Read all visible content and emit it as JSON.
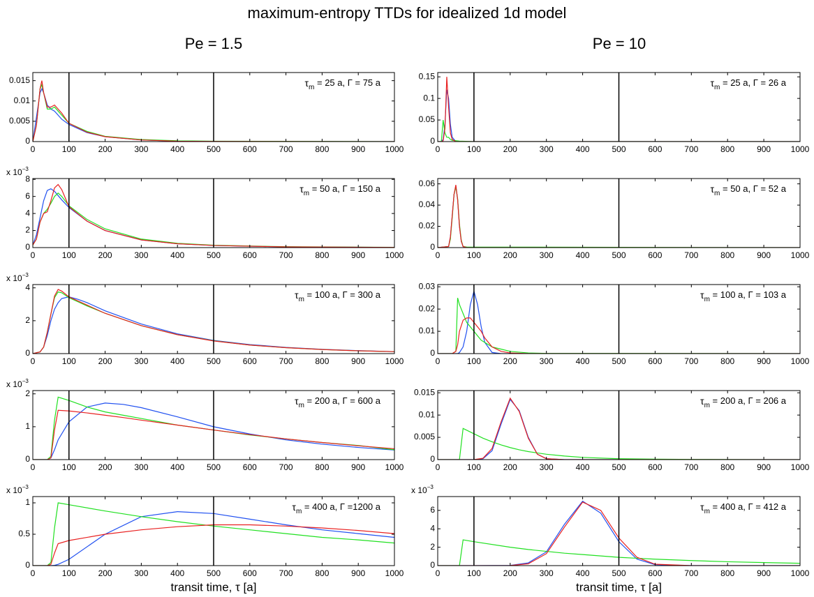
{
  "title": "maximum-entropy TTDs for idealized 1d model",
  "columns": [
    "Pe = 1.5",
    "Pe = 10"
  ],
  "chart_data": [
    {
      "type": "line",
      "annotation": [
        "τ",
        "m",
        " = 25 a, Γ =  75 a"
      ],
      "xlim": [
        0,
        1000
      ],
      "xticks": [
        0,
        100,
        200,
        300,
        400,
        500,
        600,
        700,
        800,
        900,
        1000
      ],
      "ylim": [
        0,
        0.017
      ],
      "yticks": [
        0,
        0.005,
        0.01,
        0.015
      ],
      "vlines": [
        100,
        500
      ],
      "x": [
        0,
        10,
        20,
        25,
        30,
        40,
        50,
        60,
        70,
        80,
        100,
        150,
        200,
        300,
        400,
        500,
        1000
      ],
      "series": [
        {
          "color": "#2050f0",
          "values": [
            0,
            0.006,
            0.012,
            0.013,
            0.012,
            0.009,
            0.008,
            0.0075,
            0.0065,
            0.0055,
            0.0042,
            0.0022,
            0.0012,
            0.0004,
            0.0001,
            5e-05,
            0
          ]
        },
        {
          "color": "#20e020",
          "values": [
            0,
            0.004,
            0.013,
            0.014,
            0.012,
            0.008,
            0.008,
            0.0085,
            0.0075,
            0.0065,
            0.0045,
            0.0025,
            0.0013,
            0.0005,
            0.0002,
            0.0001,
            0
          ]
        },
        {
          "color": "#e82020",
          "values": [
            0,
            0.004,
            0.013,
            0.015,
            0.012,
            0.0085,
            0.0085,
            0.009,
            0.008,
            0.007,
            0.0045,
            0.0023,
            0.0012,
            0.0004,
            0.0001,
            5e-05,
            0
          ]
        }
      ]
    },
    {
      "type": "line",
      "annotation": [
        "τ",
        "m",
        " = 50 a, Γ = 150 a"
      ],
      "scale_label": [
        "x 10",
        "−3"
      ],
      "xlim": [
        0,
        1000
      ],
      "xticks": [
        0,
        100,
        200,
        300,
        400,
        500,
        600,
        700,
        800,
        900,
        1000
      ],
      "ylim": [
        0,
        8.1
      ],
      "yticks": [
        0,
        2,
        4,
        6,
        8
      ],
      "vlines": [
        100,
        500
      ],
      "x": [
        0,
        10,
        20,
        30,
        40,
        50,
        60,
        70,
        80,
        100,
        150,
        200,
        300,
        400,
        500,
        700,
        1000
      ],
      "series": [
        {
          "color": "#2050f0",
          "values": [
            0.3,
            1.5,
            3.5,
            5.5,
            6.7,
            6.9,
            6.6,
            6.1,
            5.6,
            4.7,
            3.1,
            2.0,
            0.9,
            0.45,
            0.25,
            0.08,
            0.02
          ]
        },
        {
          "color": "#20e020",
          "values": [
            0.3,
            1,
            3,
            4,
            4.5,
            5.2,
            6,
            6.4,
            6,
            4.9,
            3.3,
            2.2,
            1.0,
            0.5,
            0.28,
            0.1,
            0.03
          ]
        },
        {
          "color": "#e82020",
          "values": [
            0.3,
            1,
            3,
            4,
            4.2,
            5.5,
            7,
            7.4,
            6.8,
            4.8,
            3.1,
            2.0,
            0.9,
            0.45,
            0.25,
            0.08,
            0.02
          ]
        }
      ]
    },
    {
      "type": "line",
      "annotation": [
        "τ",
        "m",
        " = 100 a, Γ = 300 a"
      ],
      "scale_label": [
        "x 10",
        "−3"
      ],
      "xlim": [
        0,
        1000
      ],
      "xticks": [
        0,
        100,
        200,
        300,
        400,
        500,
        600,
        700,
        800,
        900,
        1000
      ],
      "ylim": [
        0,
        4.2
      ],
      "yticks": [
        0,
        2,
        4
      ],
      "vlines": [
        100,
        500
      ],
      "x": [
        0,
        20,
        30,
        40,
        50,
        60,
        70,
        80,
        100,
        125,
        150,
        200,
        300,
        400,
        500,
        600,
        700,
        800,
        900,
        1000
      ],
      "series": [
        {
          "color": "#2050f0",
          "values": [
            0,
            0.1,
            0.4,
            1.1,
            2.0,
            2.7,
            3.1,
            3.35,
            3.45,
            3.3,
            3.1,
            2.6,
            1.8,
            1.2,
            0.8,
            0.55,
            0.38,
            0.26,
            0.18,
            0.12
          ]
        },
        {
          "color": "#20e020",
          "values": [
            0,
            0.1,
            0.4,
            1.3,
            2.4,
            3.4,
            3.75,
            3.7,
            3.4,
            3.15,
            2.9,
            2.45,
            1.7,
            1.15,
            0.78,
            0.52,
            0.36,
            0.25,
            0.17,
            0.12
          ]
        },
        {
          "color": "#e82020",
          "values": [
            0,
            0.1,
            0.4,
            1.3,
            2.4,
            3.5,
            3.9,
            3.8,
            3.45,
            3.2,
            2.95,
            2.45,
            1.7,
            1.15,
            0.77,
            0.52,
            0.36,
            0.25,
            0.17,
            0.12
          ]
        }
      ]
    },
    {
      "type": "line",
      "annotation": [
        "τ",
        "m",
        " = 200 a, Γ = 600 a"
      ],
      "scale_label": [
        "x 10",
        "−3"
      ],
      "xlim": [
        0,
        1000
      ],
      "xticks": [
        0,
        100,
        200,
        300,
        400,
        500,
        600,
        700,
        800,
        900,
        1000
      ],
      "ylim": [
        0,
        2.1
      ],
      "yticks": [
        0,
        1,
        2
      ],
      "vlines": [
        100,
        500
      ],
      "x": [
        0,
        40,
        50,
        60,
        70,
        100,
        150,
        200,
        250,
        300,
        400,
        500,
        600,
        700,
        800,
        900,
        1000
      ],
      "series": [
        {
          "color": "#2050f0",
          "values": [
            0,
            0,
            0.05,
            0.3,
            0.6,
            1.15,
            1.6,
            1.72,
            1.68,
            1.58,
            1.3,
            1.0,
            0.78,
            0.6,
            0.47,
            0.37,
            0.29
          ]
        },
        {
          "color": "#20e020",
          "values": [
            0,
            0,
            0.1,
            1.2,
            1.9,
            1.8,
            1.6,
            1.45,
            1.35,
            1.25,
            1.05,
            0.9,
            0.75,
            0.63,
            0.52,
            0.43,
            0.3
          ]
        },
        {
          "color": "#e82020",
          "values": [
            0,
            0,
            0.05,
            0.9,
            1.5,
            1.48,
            1.42,
            1.35,
            1.28,
            1.2,
            1.05,
            0.9,
            0.76,
            0.63,
            0.52,
            0.42,
            0.33
          ]
        }
      ]
    },
    {
      "type": "line",
      "annotation": [
        "τ",
        "m",
        " = 400 a, Γ =1200 a"
      ],
      "scale_label": [
        "x 10",
        "−3"
      ],
      "xlabel": "transit time, τ [a]",
      "xlim": [
        0,
        1000
      ],
      "xticks": [
        0,
        100,
        200,
        300,
        400,
        500,
        600,
        700,
        800,
        900,
        1000
      ],
      "ylim": [
        0,
        1.1
      ],
      "yticks": [
        0,
        0.5,
        1
      ],
      "vlines": [
        100,
        500
      ],
      "x": [
        0,
        40,
        50,
        60,
        70,
        100,
        200,
        300,
        400,
        500,
        600,
        700,
        800,
        900,
        1000
      ],
      "series": [
        {
          "color": "#2050f0",
          "values": [
            0,
            0,
            0,
            0.005,
            0.02,
            0.1,
            0.5,
            0.78,
            0.86,
            0.83,
            0.74,
            0.65,
            0.57,
            0.51,
            0.45
          ]
        },
        {
          "color": "#20e020",
          "values": [
            0,
            0,
            0.05,
            0.6,
            1.0,
            0.97,
            0.87,
            0.78,
            0.7,
            0.63,
            0.57,
            0.51,
            0.45,
            0.41,
            0.36
          ]
        },
        {
          "color": "#e82020",
          "values": [
            0,
            0,
            0.02,
            0.2,
            0.35,
            0.4,
            0.5,
            0.57,
            0.62,
            0.65,
            0.65,
            0.63,
            0.6,
            0.56,
            0.51
          ]
        }
      ]
    },
    {
      "type": "line",
      "annotation": [
        "τ",
        "m",
        " = 25 a, Γ =  26 a"
      ],
      "xlim": [
        0,
        1000
      ],
      "xticks": [
        0,
        100,
        200,
        300,
        400,
        500,
        600,
        700,
        800,
        900,
        1000
      ],
      "ylim": [
        0,
        0.16
      ],
      "yticks": [
        0,
        0.05,
        0.1,
        0.15
      ],
      "vlines": [
        100,
        500
      ],
      "x": [
        0,
        10,
        15,
        20,
        25,
        30,
        35,
        40,
        50,
        60,
        100,
        1000
      ],
      "series": [
        {
          "color": "#2050f0",
          "values": [
            0,
            0,
            0.005,
            0.04,
            0.12,
            0.1,
            0.04,
            0.01,
            0,
            0,
            0,
            0
          ]
        },
        {
          "color": "#20e020",
          "values": [
            0,
            0,
            0.05,
            0.02,
            0.01,
            0.01,
            0.005,
            0.003,
            0.002,
            0.001,
            0,
            0
          ]
        },
        {
          "color": "#e82020",
          "values": [
            0,
            0,
            0.002,
            0.03,
            0.15,
            0.08,
            0.02,
            0.005,
            0,
            0,
            0,
            0
          ]
        }
      ]
    },
    {
      "type": "line",
      "annotation": [
        "τ",
        "m",
        " = 50 a, Γ =  52 a"
      ],
      "xlim": [
        0,
        1000
      ],
      "xticks": [
        0,
        100,
        200,
        300,
        400,
        500,
        600,
        700,
        800,
        900,
        1000
      ],
      "ylim": [
        0,
        0.065
      ],
      "yticks": [
        0,
        0.02,
        0.04,
        0.06
      ],
      "vlines": [
        100,
        500
      ],
      "x": [
        0,
        30,
        35,
        40,
        45,
        50,
        55,
        60,
        65,
        70,
        80,
        1000
      ],
      "series": [
        {
          "color": "#2050f0",
          "values": [
            0,
            0.001,
            0.01,
            0.03,
            0.05,
            0.058,
            0.045,
            0.02,
            0.006,
            0.001,
            0,
            0
          ]
        },
        {
          "color": "#20e020",
          "values": [
            0,
            0.001,
            0.008,
            0.028,
            0.05,
            0.057,
            0.046,
            0.022,
            0.007,
            0.001,
            0.0005,
            0
          ]
        },
        {
          "color": "#e82020",
          "values": [
            0,
            0.001,
            0.01,
            0.03,
            0.05,
            0.059,
            0.045,
            0.02,
            0.006,
            0.001,
            0,
            0
          ]
        }
      ]
    },
    {
      "type": "line",
      "annotation": [
        "τ",
        "m",
        " = 100 a, Γ = 103 a"
      ],
      "xlim": [
        0,
        1000
      ],
      "xticks": [
        0,
        100,
        200,
        300,
        400,
        500,
        600,
        700,
        800,
        900,
        1000
      ],
      "ylim": [
        0,
        0.031
      ],
      "yticks": [
        0,
        0.01,
        0.02,
        0.03
      ],
      "vlines": [
        100,
        500
      ],
      "x": [
        0,
        40,
        50,
        55,
        60,
        70,
        80,
        90,
        100,
        110,
        120,
        130,
        150,
        175,
        200,
        250,
        300,
        1000
      ],
      "series": [
        {
          "color": "#2050f0",
          "values": [
            0,
            0,
            0,
            0,
            0.0005,
            0.003,
            0.01,
            0.022,
            0.028,
            0.022,
            0.012,
            0.005,
            0.0005,
            0,
            0,
            0,
            0,
            0
          ]
        },
        {
          "color": "#20e020",
          "values": [
            0,
            0,
            0.001,
            0.025,
            0.022,
            0.018,
            0.014,
            0.012,
            0.01,
            0.008,
            0.006,
            0.005,
            0.003,
            0.002,
            0.001,
            0.0003,
            0.0001,
            0
          ]
        },
        {
          "color": "#e82020",
          "values": [
            0,
            0,
            0.001,
            0.004,
            0.01,
            0.015,
            0.016,
            0.016,
            0.014,
            0.012,
            0.01,
            0.007,
            0.003,
            0.001,
            0.0003,
            0,
            0,
            0
          ]
        }
      ]
    },
    {
      "type": "line",
      "annotation": [
        "τ",
        "m",
        " = 200 a, Γ = 206 a"
      ],
      "xlim": [
        0,
        1000
      ],
      "xticks": [
        0,
        100,
        200,
        300,
        400,
        500,
        600,
        700,
        800,
        900,
        1000
      ],
      "ylim": [
        0,
        0.0155
      ],
      "yticks": [
        0,
        0.005,
        0.01,
        0.015
      ],
      "vlines": [
        100,
        500
      ],
      "x": [
        0,
        60,
        70,
        100,
        125,
        150,
        175,
        200,
        225,
        250,
        275,
        300,
        350,
        400,
        500,
        600,
        700,
        800,
        900,
        1000
      ],
      "series": [
        {
          "color": "#2050f0",
          "values": [
            0,
            0,
            0,
            0,
            0.0002,
            0.002,
            0.008,
            0.0135,
            0.011,
            0.005,
            0.0012,
            0.0002,
            0,
            0,
            0,
            0,
            0,
            0,
            0,
            0
          ]
        },
        {
          "color": "#20e020",
          "values": [
            0,
            0,
            0.007,
            0.0058,
            0.0048,
            0.004,
            0.0033,
            0.0027,
            0.0022,
            0.0018,
            0.0015,
            0.0012,
            0.0008,
            0.0005,
            0.0002,
            0.0001,
            5e-05,
            2e-05,
            1e-05,
            0
          ]
        },
        {
          "color": "#e82020",
          "values": [
            0,
            0,
            0,
            0,
            0.0003,
            0.0025,
            0.0085,
            0.0138,
            0.0108,
            0.0048,
            0.0012,
            0.0002,
            0,
            0,
            0,
            0,
            0,
            0,
            0,
            0
          ]
        }
      ]
    },
    {
      "type": "line",
      "annotation": [
        "τ",
        "m",
        " = 400 a, Γ = 412 a"
      ],
      "scale_label": [
        "x 10",
        "−3"
      ],
      "xlabel": "transit time, τ [a]",
      "xlim": [
        0,
        1000
      ],
      "xticks": [
        0,
        100,
        200,
        300,
        400,
        500,
        600,
        700,
        800,
        900,
        1000
      ],
      "ylim": [
        0,
        7.5
      ],
      "yticks": [
        0,
        2,
        4,
        6
      ],
      "vlines": [
        100,
        500
      ],
      "x": [
        0,
        60,
        70,
        100,
        200,
        250,
        300,
        350,
        400,
        450,
        500,
        550,
        600,
        700,
        800,
        900,
        1000
      ],
      "series": [
        {
          "color": "#2050f0",
          "values": [
            0,
            0,
            0,
            0,
            0.02,
            0.3,
            1.5,
            4.5,
            7.0,
            5.7,
            2.6,
            0.7,
            0.1,
            0,
            0,
            0,
            0
          ]
        },
        {
          "color": "#20e020",
          "values": [
            0,
            0,
            2.8,
            2.6,
            2.0,
            1.75,
            1.55,
            1.35,
            1.2,
            1.05,
            0.9,
            0.8,
            0.7,
            0.55,
            0.42,
            0.33,
            0.25
          ]
        },
        {
          "color": "#e82020",
          "values": [
            0,
            0,
            0,
            0,
            0.01,
            0.2,
            1.3,
            4.2,
            6.9,
            6.0,
            3.0,
            0.9,
            0.15,
            0,
            0,
            0,
            0
          ]
        }
      ]
    }
  ]
}
